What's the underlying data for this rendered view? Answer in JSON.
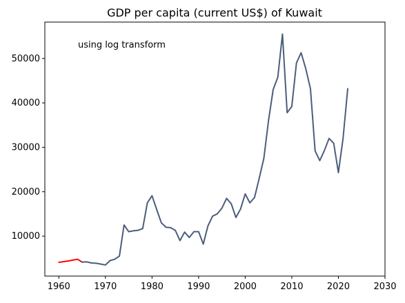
{
  "chart_data": {
    "type": "line",
    "title": "GDP per capita (current US$) of Kuwait",
    "annotation": "using log transform",
    "xlabel": "",
    "ylabel": "",
    "xlim": [
      1957,
      2030
    ],
    "ylim": [
      1000,
      58200
    ],
    "x_ticks": [
      1960,
      1970,
      1980,
      1990,
      2000,
      2010,
      2020,
      2030
    ],
    "y_ticks": [
      10000,
      20000,
      30000,
      40000,
      50000
    ],
    "grid": false,
    "series": [
      {
        "color": "#ff0000",
        "x": [
          1960,
          1961,
          1962,
          1963,
          1964,
          1965
        ],
        "values": [
          4100,
          4250,
          4400,
          4600,
          4800,
          4150
        ]
      },
      {
        "color": "#4a5d7a",
        "x": [
          1965,
          1966,
          1967,
          1968,
          1969,
          1970,
          1971,
          1972,
          1973,
          1974,
          1975,
          1976,
          1977,
          1978,
          1979,
          1980,
          1981,
          1982,
          1983,
          1984,
          1985,
          1986,
          1987,
          1988,
          1989,
          1990,
          1991,
          1992,
          1993,
          1994,
          1995,
          1996,
          1997,
          1998,
          1999,
          2000,
          2001,
          2002,
          2003,
          2004,
          2005,
          2006,
          2007,
          2008,
          2009,
          2010,
          2011,
          2012,
          2013,
          2014,
          2015,
          2016,
          2017,
          2018,
          2019,
          2020,
          2021,
          2022
        ],
        "values": [
          4150,
          4200,
          3950,
          3900,
          3700,
          3500,
          4500,
          4800,
          5500,
          12500,
          11000,
          11200,
          11300,
          11700,
          17500,
          19100,
          16000,
          13000,
          12000,
          11900,
          11300,
          9000,
          10900,
          9700,
          11000,
          11000,
          8200,
          12300,
          14500,
          15000,
          16300,
          18500,
          17300,
          14200,
          16100,
          19500,
          17500,
          18700,
          23000,
          27500,
          36000,
          43000,
          45800,
          55500,
          37800,
          39200,
          49000,
          51300,
          47700,
          43200,
          29200,
          27000,
          29300,
          32000,
          30900,
          24300,
          32000,
          43200
        ]
      }
    ]
  }
}
